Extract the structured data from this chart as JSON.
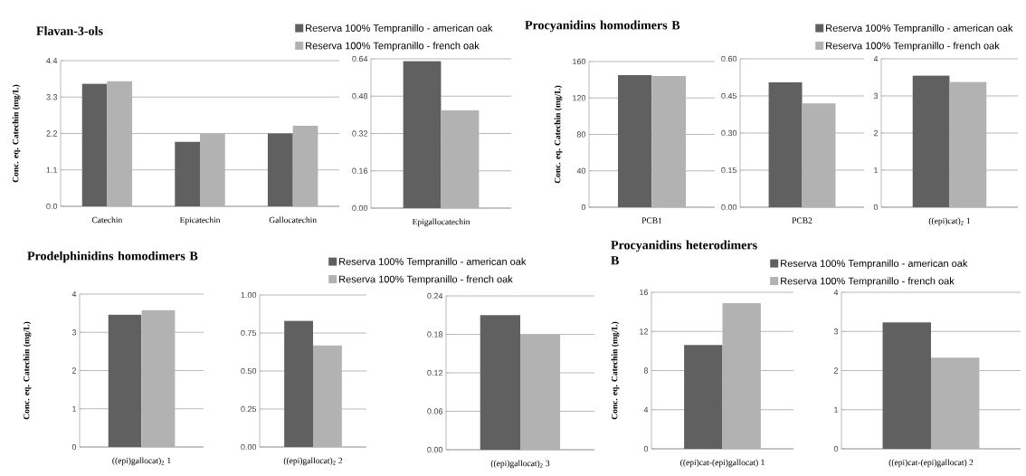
{
  "chart_data": [
    {
      "type": "bar",
      "title": "Flavan-3-ols",
      "ylabel": "Conc. eq. Catechin (mg/L)",
      "categories": [
        "Catechin",
        "Epicatechin",
        "Gallocatechin"
      ],
      "legend": "top right",
      "grid": "y",
      "series": [
        {
          "name": "Reserva 100% Tempranillo - american oak",
          "color": "#606060",
          "values": [
            3.7,
            1.95,
            2.2
          ]
        },
        {
          "name": "Reserva 100% Tempranillo - french oak",
          "color": "#b2b2b2",
          "values": [
            3.78,
            2.2,
            2.43
          ]
        }
      ],
      "ylim": [
        0,
        4.4
      ],
      "yticks": [
        {
          "value": 0,
          "label": "0.0"
        },
        1.1,
        2.2,
        3.3,
        4.4
      ]
    },
    {
      "type": "bar",
      "categories": [
        "Epigallocatechin"
      ],
      "grid": "y",
      "series": [
        {
          "color": "#606060",
          "values": [
            0.63
          ]
        },
        {
          "color": "#b2b2b2",
          "values": [
            0.42
          ]
        }
      ],
      "ylim": [
        0,
        0.64
      ],
      "yticks": [
        {
          "value": 0,
          "label": "0.00"
        },
        0.16,
        0.32,
        0.48,
        0.64
      ]
    },
    {
      "type": "bar",
      "title": "Procyanidins  homodimers B",
      "ylabel": "Conc. eq. Catechin (mg/L)",
      "categories": [
        "PCB1"
      ],
      "legend": "top right",
      "grid": "y",
      "series": [
        {
          "name": "Reserva 100% Tempranillo - american oak",
          "color": "#606060",
          "values": [
            145
          ]
        },
        {
          "name": "Reserva 100% Tempranillo - french oak",
          "color": "#b2b2b2",
          "values": [
            144
          ]
        }
      ],
      "ylim": [
        0,
        160
      ],
      "yticks": [
        0,
        40,
        80,
        120,
        160
      ]
    },
    {
      "type": "bar",
      "categories": [
        "PCB2"
      ],
      "grid": "y",
      "series": [
        {
          "color": "#606060",
          "values": [
            0.505
          ]
        },
        {
          "color": "#b2b2b2",
          "values": [
            0.42
          ]
        }
      ],
      "ylim": [
        0,
        0.6
      ],
      "yticks": [
        {
          "value": 0,
          "label": "0.00"
        },
        0.15,
        {
          "value": 0.3,
          "label": "0.30"
        },
        0.45,
        {
          "value": 0.6,
          "label": "0.60"
        }
      ]
    },
    {
      "type": "bar",
      "categories": [
        "((epi)cat)$_{2}$ 1"
      ],
      "grid": "y",
      "series": [
        {
          "color": "#606060",
          "values": [
            3.55
          ]
        },
        {
          "color": "#b2b2b2",
          "values": [
            3.38
          ]
        }
      ],
      "ylim": [
        0,
        4
      ],
      "yticks": [
        0,
        1,
        2,
        3,
        4
      ]
    },
    {
      "type": "bar",
      "title": "Prodelphinidins  homodimers B",
      "ylabel": "Conc. eq. Catechin (mg/L)",
      "categories": [
        "((epi)gallocat)$_{2}$ 1"
      ],
      "legend": "top right",
      "grid": "y",
      "series": [
        {
          "name": "Reserva 100% Tempranillo - american oak",
          "color": "#606060",
          "values": [
            3.46
          ]
        },
        {
          "name": "Reserva 100% Tempranillo - french oak",
          "color": "#b2b2b2",
          "values": [
            3.58
          ]
        }
      ],
      "ylim": [
        0,
        4
      ],
      "yticks": [
        0,
        1,
        2,
        3,
        4
      ]
    },
    {
      "type": "bar",
      "categories": [
        "((epi)gallocat)$_{2}$ 2"
      ],
      "grid": "y",
      "series": [
        {
          "color": "#606060",
          "values": [
            0.83
          ]
        },
        {
          "color": "#b2b2b2",
          "values": [
            0.67
          ]
        }
      ],
      "ylim": [
        0,
        1
      ],
      "yticks": [
        {
          "value": 0,
          "label": "0.00"
        },
        0.25,
        {
          "value": 0.5,
          "label": "0.50"
        },
        0.75,
        {
          "value": 1,
          "label": "1.00"
        }
      ]
    },
    {
      "type": "bar",
      "categories": [
        "((epi)gallocat)$_{2}$ 3"
      ],
      "grid": "y",
      "series": [
        {
          "color": "#606060",
          "values": [
            0.21
          ]
        },
        {
          "color": "#b2b2b2",
          "values": [
            0.18
          ]
        }
      ],
      "ylim": [
        0,
        0.24
      ],
      "yticks": [
        {
          "value": 0,
          "label": "0.00"
        },
        0.06,
        0.12,
        0.18,
        0.24
      ]
    },
    {
      "type": "bar",
      "title": "Procyanidins heterodimers B",
      "ylabel": "Conc. eq. Catechin (mg/L)",
      "categories": [
        "((epi)cat-(epi)gallocat) 1"
      ],
      "legend": "top right",
      "grid": "y",
      "series": [
        {
          "name": "Reserva 100% Tempranillo - american oak",
          "color": "#606060",
          "values": [
            10.6
          ]
        },
        {
          "name": "Reserva 100% Tempranillo - french oak",
          "color": "#b2b2b2",
          "values": [
            14.9
          ]
        }
      ],
      "ylim": [
        0,
        16
      ],
      "yticks": [
        0,
        4,
        8,
        12,
        16
      ]
    },
    {
      "type": "bar",
      "categories": [
        "((epi)cat-(epi)gallocat) 2"
      ],
      "grid": "y",
      "series": [
        {
          "color": "#606060",
          "values": [
            3.23
          ]
        },
        {
          "color": "#b2b2b2",
          "values": [
            2.33
          ]
        }
      ],
      "ylim": [
        0,
        4
      ],
      "yticks": [
        0,
        1,
        2,
        3,
        4
      ]
    }
  ]
}
